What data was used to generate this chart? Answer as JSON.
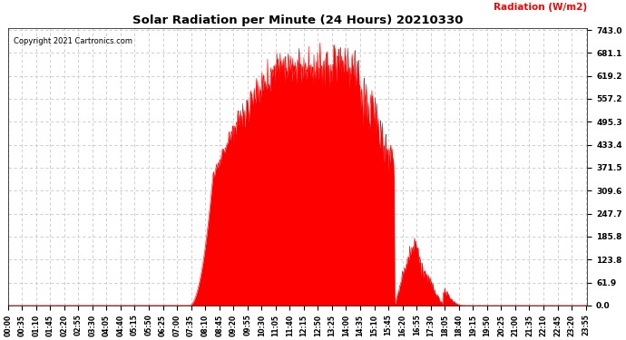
{
  "title": "Solar Radiation per Minute (24 Hours) 20210330",
  "ylabel": "Radiation (W/m2)",
  "copyright_text": "Copyright 2021 Cartronics.com",
  "fill_color": "#FF0000",
  "line_color": "#FF0000",
  "background_color": "#FFFFFF",
  "grid_color": "#C8C8C8",
  "ytick_labels": [
    0.0,
    61.9,
    123.8,
    185.8,
    247.7,
    309.6,
    371.5,
    433.4,
    495.3,
    557.2,
    619.2,
    681.1,
    743.0
  ],
  "ymax": 743.0,
  "ymin": 0.0,
  "total_minutes": 1440,
  "sunrise_minute": 450,
  "sunset_minute": 1130,
  "peak_value": 743.0,
  "tick_interval": 35,
  "figwidth": 6.9,
  "figheight": 3.75,
  "dpi": 100
}
